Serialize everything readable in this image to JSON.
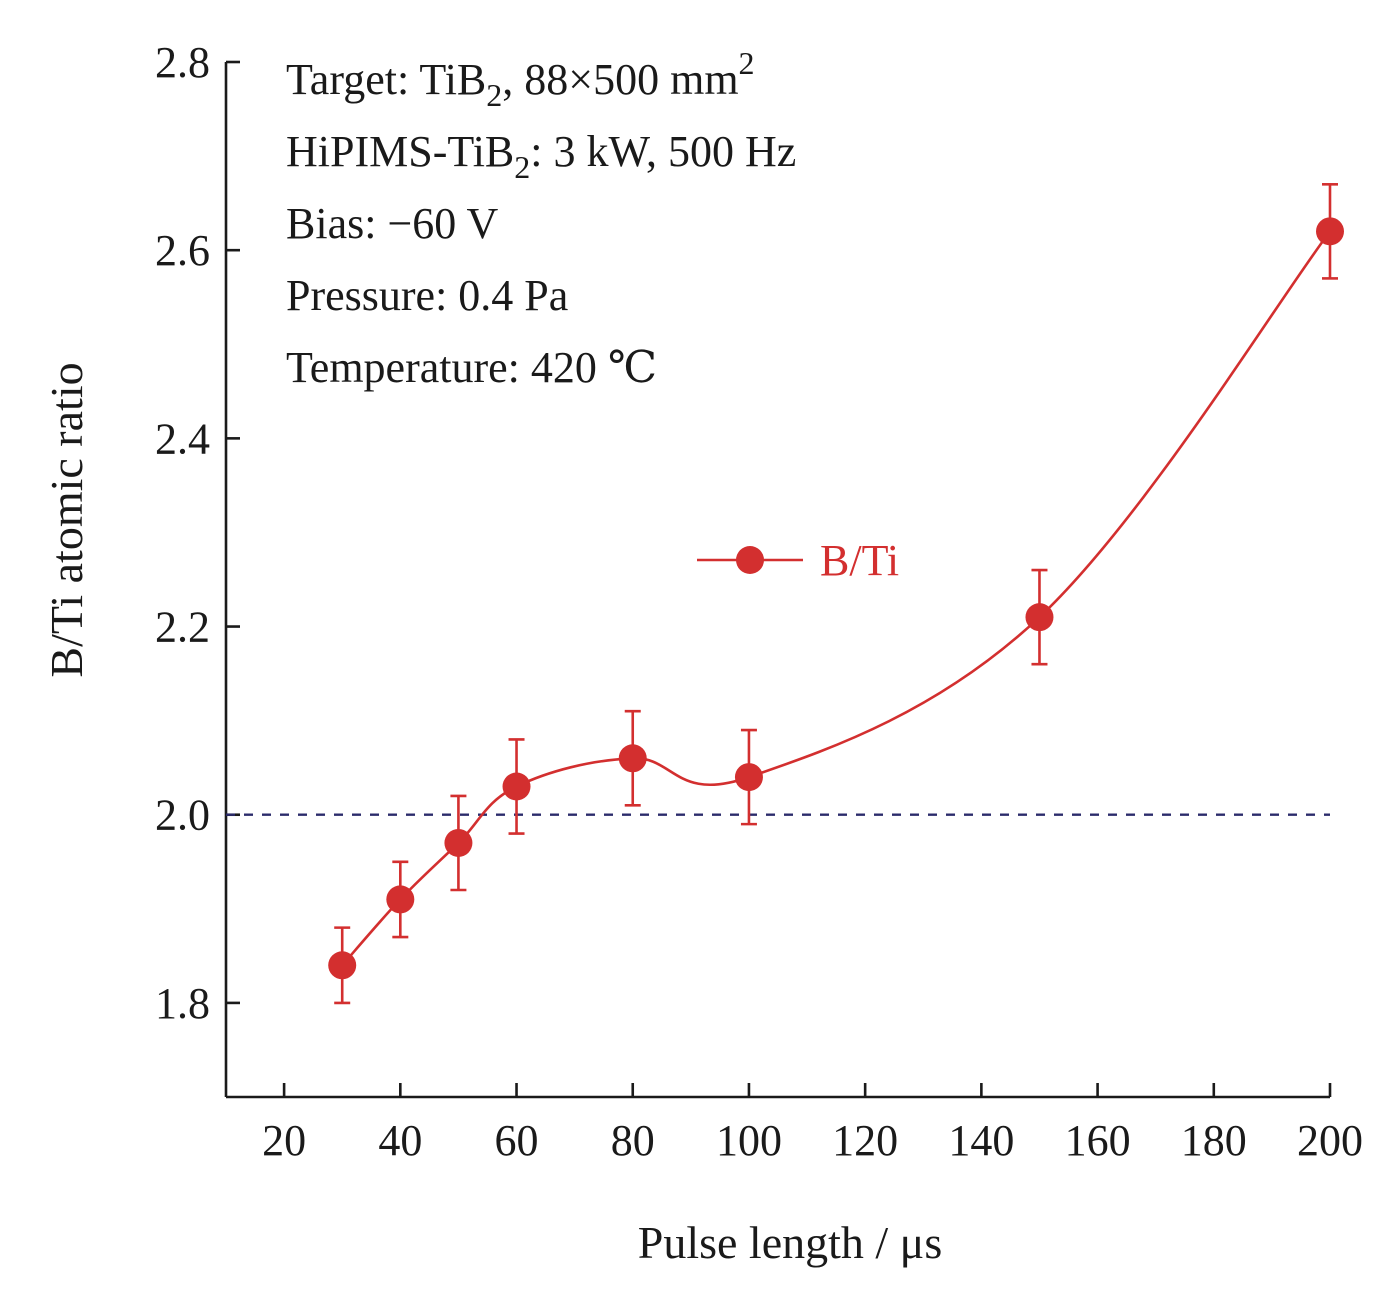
{
  "chart_data": {
    "type": "line",
    "xlabel": "Pulse length / μs",
    "ylabel": "B/Ti atomic ratio",
    "xlim": [
      10,
      200
    ],
    "ylim": [
      1.7,
      2.8
    ],
    "x_ticks": [
      20,
      40,
      60,
      80,
      100,
      120,
      140,
      160,
      180,
      200
    ],
    "y_ticks": [
      1.8,
      2.0,
      2.2,
      2.4,
      2.6,
      2.8
    ],
    "x_tick_labels": [
      "20",
      "40",
      "60",
      "80",
      "100",
      "120",
      "140",
      "160",
      "180",
      "200"
    ],
    "y_tick_labels": [
      "1.8",
      "2.0",
      "2.2",
      "2.4",
      "2.6",
      "2.8"
    ],
    "grid": false,
    "reference_line": {
      "y": 2.0,
      "style": "dashed",
      "color": "#2b2b6b"
    },
    "series": [
      {
        "name": "B/Ti",
        "color": "#d32f2f",
        "marker": "circle",
        "x": [
          30,
          40,
          50,
          60,
          80,
          100,
          150,
          200
        ],
        "y": [
          1.84,
          1.91,
          1.97,
          2.03,
          2.06,
          2.04,
          2.21,
          2.62
        ],
        "error": [
          0.04,
          0.04,
          0.05,
          0.05,
          0.05,
          0.05,
          0.05,
          0.05
        ]
      }
    ],
    "legend": {
      "placement": "center",
      "entries": [
        "B/Ti"
      ]
    },
    "annotations": [
      {
        "text": "Target: TiB",
        "sub": "2",
        "rest": ", 88×500 mm",
        "sup": "2"
      },
      {
        "text": "HiPIMS-TiB",
        "sub": "2",
        "rest": ": 3 kW, 500 Hz",
        "sup": ""
      },
      {
        "text": "Bias: −60 V",
        "sub": "",
        "rest": "",
        "sup": ""
      },
      {
        "text": "Pressure: 0.4 Pa",
        "sub": "",
        "rest": "",
        "sup": ""
      },
      {
        "text": "Temperature: 420 ℃",
        "sub": "",
        "rest": "",
        "sup": ""
      }
    ]
  }
}
